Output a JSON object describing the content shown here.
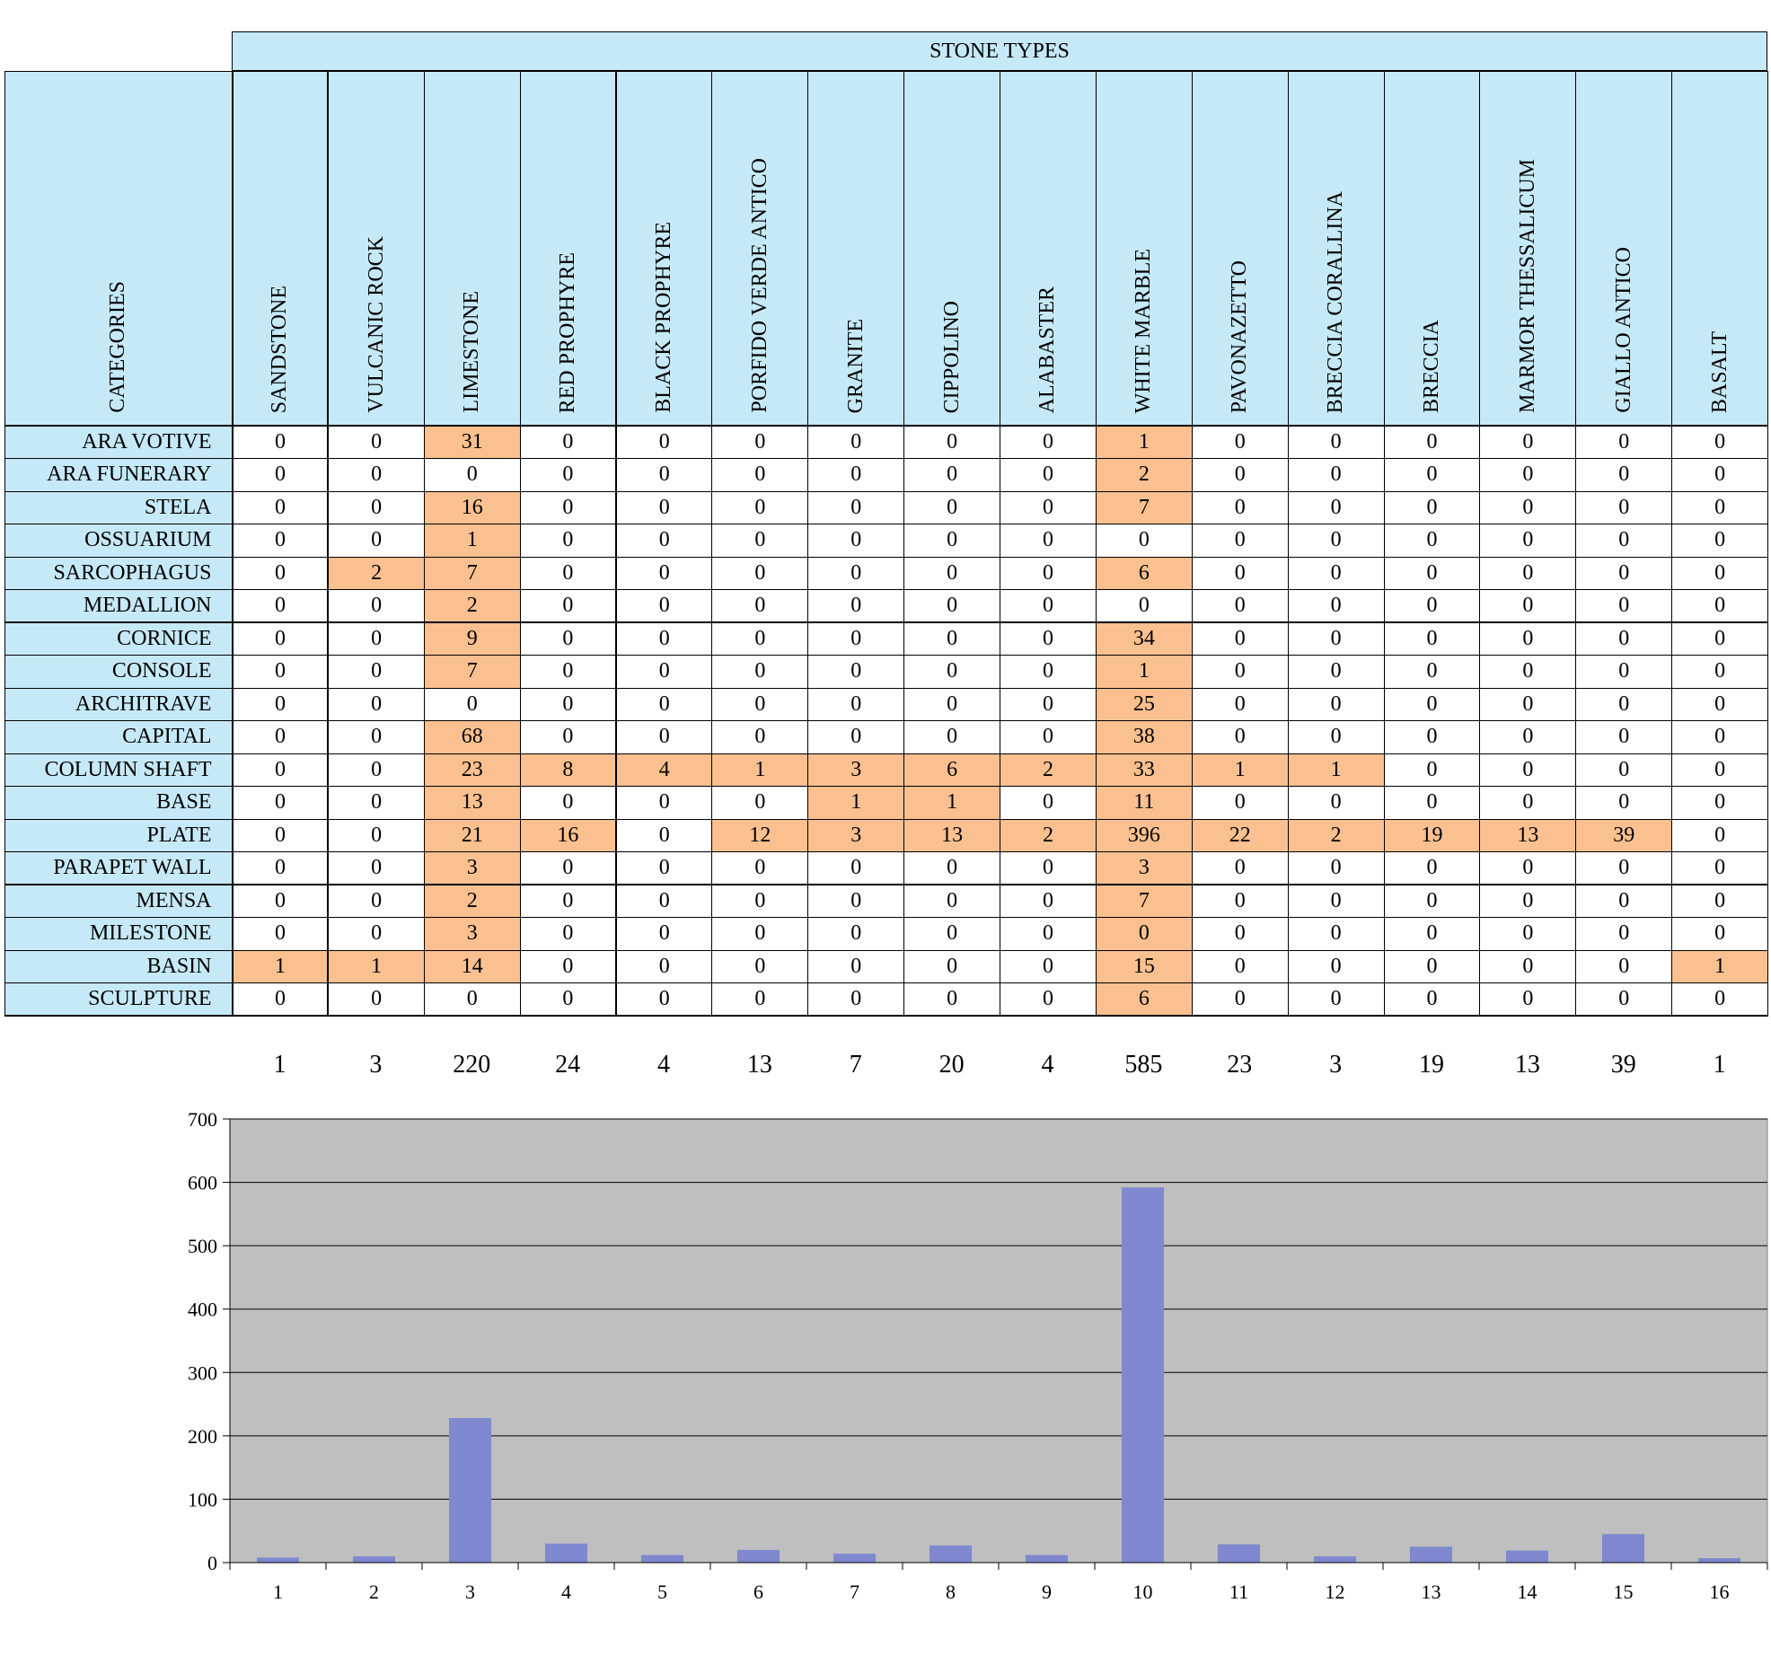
{
  "table": {
    "stone_types_header": "STONE TYPES",
    "categories_header": "CATEGORIES",
    "stone_types": [
      "SANDSTONE",
      "VULCANIC ROCK",
      "LIMESTONE",
      "RED PROPHYRE",
      "BLACK PROPHYRE",
      "PORFIDO VERDE ANTICO",
      "GRANITE",
      "CIPPOLINO",
      "ALABASTER",
      "WHITE MARBLE",
      "PAVONAZETTO",
      "BRECCIA CORALLINA",
      "BRECCIA",
      "MARMOR THESSALICUM",
      "GIALLO ANTICO",
      "BASALT"
    ],
    "rows": [
      {
        "category": "ARA VOTIVE",
        "values": [
          0,
          0,
          31,
          0,
          0,
          0,
          0,
          0,
          0,
          1,
          0,
          0,
          0,
          0,
          0,
          0
        ]
      },
      {
        "category": "ARA FUNERARY",
        "values": [
          0,
          0,
          0,
          0,
          0,
          0,
          0,
          0,
          0,
          2,
          0,
          0,
          0,
          0,
          0,
          0
        ]
      },
      {
        "category": "STELA",
        "values": [
          0,
          0,
          16,
          0,
          0,
          0,
          0,
          0,
          0,
          7,
          0,
          0,
          0,
          0,
          0,
          0
        ]
      },
      {
        "category": "OSSUARIUM",
        "values": [
          0,
          0,
          1,
          0,
          0,
          0,
          0,
          0,
          0,
          0,
          0,
          0,
          0,
          0,
          0,
          0
        ]
      },
      {
        "category": "SARCOPHAGUS",
        "values": [
          0,
          2,
          7,
          0,
          0,
          0,
          0,
          0,
          0,
          6,
          0,
          0,
          0,
          0,
          0,
          0
        ]
      },
      {
        "category": "MEDALLION",
        "values": [
          0,
          0,
          2,
          0,
          0,
          0,
          0,
          0,
          0,
          0,
          0,
          0,
          0,
          0,
          0,
          0
        ]
      },
      {
        "category": "CORNICE",
        "values": [
          0,
          0,
          9,
          0,
          0,
          0,
          0,
          0,
          0,
          34,
          0,
          0,
          0,
          0,
          0,
          0
        ]
      },
      {
        "category": "CONSOLE",
        "values": [
          0,
          0,
          7,
          0,
          0,
          0,
          0,
          0,
          0,
          1,
          0,
          0,
          0,
          0,
          0,
          0
        ]
      },
      {
        "category": "ARCHITRAVE",
        "values": [
          0,
          0,
          0,
          0,
          0,
          0,
          0,
          0,
          0,
          25,
          0,
          0,
          0,
          0,
          0,
          0
        ]
      },
      {
        "category": "CAPITAL",
        "values": [
          0,
          0,
          68,
          0,
          0,
          0,
          0,
          0,
          0,
          38,
          0,
          0,
          0,
          0,
          0,
          0
        ]
      },
      {
        "category": "COLUMN SHAFT",
        "values": [
          0,
          0,
          23,
          8,
          4,
          1,
          3,
          6,
          2,
          33,
          1,
          1,
          0,
          0,
          0,
          0
        ]
      },
      {
        "category": "BASE",
        "values": [
          0,
          0,
          13,
          0,
          0,
          0,
          1,
          1,
          0,
          11,
          0,
          0,
          0,
          0,
          0,
          0
        ]
      },
      {
        "category": "PLATE",
        "values": [
          0,
          0,
          21,
          16,
          0,
          12,
          3,
          13,
          2,
          396,
          22,
          2,
          19,
          13,
          39,
          0
        ]
      },
      {
        "category": "PARAPET WALL",
        "values": [
          0,
          0,
          3,
          0,
          0,
          0,
          0,
          0,
          0,
          3,
          0,
          0,
          0,
          0,
          0,
          0
        ]
      },
      {
        "category": "MENSA",
        "values": [
          0,
          0,
          2,
          0,
          0,
          0,
          0,
          0,
          0,
          7,
          0,
          0,
          0,
          0,
          0,
          0
        ]
      },
      {
        "category": "MILESTONE",
        "values": [
          0,
          0,
          3,
          0,
          0,
          0,
          0,
          0,
          0,
          0,
          0,
          0,
          0,
          0,
          0,
          0
        ]
      },
      {
        "category": "BASIN",
        "values": [
          1,
          1,
          14,
          0,
          0,
          0,
          0,
          0,
          0,
          15,
          0,
          0,
          0,
          0,
          0,
          1
        ]
      },
      {
        "category": "SCULPTURE",
        "values": [
          0,
          0,
          0,
          0,
          0,
          0,
          0,
          0,
          0,
          6,
          0,
          0,
          0,
          0,
          0,
          0
        ]
      }
    ],
    "highlighted_cells": [
      [
        0,
        2
      ],
      [
        0,
        9
      ],
      [
        1,
        9
      ],
      [
        2,
        2
      ],
      [
        2,
        9
      ],
      [
        3,
        2
      ],
      [
        4,
        1
      ],
      [
        4,
        2
      ],
      [
        4,
        9
      ],
      [
        5,
        2
      ],
      [
        6,
        2
      ],
      [
        6,
        9
      ],
      [
        7,
        2
      ],
      [
        7,
        9
      ],
      [
        8,
        9
      ],
      [
        9,
        2
      ],
      [
        9,
        9
      ],
      [
        10,
        2
      ],
      [
        10,
        3
      ],
      [
        10,
        4
      ],
      [
        10,
        5
      ],
      [
        10,
        6
      ],
      [
        10,
        7
      ],
      [
        10,
        8
      ],
      [
        10,
        9
      ],
      [
        10,
        10
      ],
      [
        10,
        11
      ],
      [
        11,
        2
      ],
      [
        11,
        6
      ],
      [
        11,
        7
      ],
      [
        11,
        9
      ],
      [
        12,
        2
      ],
      [
        12,
        3
      ],
      [
        12,
        5
      ],
      [
        12,
        6
      ],
      [
        12,
        7
      ],
      [
        12,
        8
      ],
      [
        12,
        9
      ],
      [
        12,
        10
      ],
      [
        12,
        11
      ],
      [
        12,
        12
      ],
      [
        12,
        13
      ],
      [
        12,
        14
      ],
      [
        13,
        2
      ],
      [
        13,
        9
      ],
      [
        14,
        2
      ],
      [
        14,
        9
      ],
      [
        15,
        2
      ],
      [
        15,
        9
      ],
      [
        16,
        0
      ],
      [
        16,
        1
      ],
      [
        16,
        2
      ],
      [
        16,
        9
      ],
      [
        16,
        15
      ],
      [
        17,
        9
      ]
    ],
    "group_start_rows": [
      6,
      14
    ],
    "highlight_color": "#fac08f",
    "header_color": "#c6e9f7"
  },
  "totals": [
    1,
    3,
    220,
    24,
    4,
    13,
    7,
    20,
    4,
    585,
    23,
    3,
    19,
    13,
    39,
    1
  ],
  "chart_data": {
    "type": "bar",
    "categories": [
      "1",
      "2",
      "3",
      "4",
      "5",
      "6",
      "7",
      "8",
      "9",
      "10",
      "11",
      "12",
      "13",
      "14",
      "15",
      "16"
    ],
    "values": [
      8,
      10,
      228,
      30,
      12,
      20,
      14,
      27,
      12,
      592,
      29,
      10,
      25,
      19,
      45,
      7
    ],
    "yticks": [
      "0",
      "100",
      "200",
      "300",
      "400",
      "500",
      "600",
      "700"
    ],
    "ylim": [
      0,
      700
    ],
    "grid": true,
    "bar_color": "#8088cf",
    "plot_background": "#bfbfbf"
  }
}
